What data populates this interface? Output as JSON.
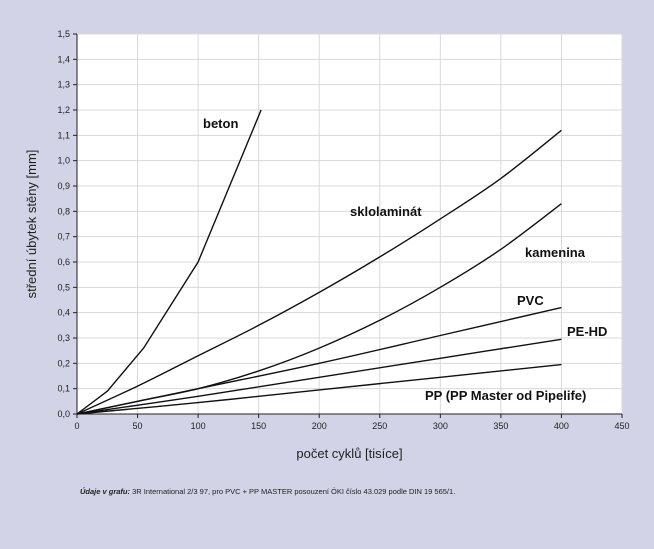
{
  "chart_data": {
    "type": "line",
    "title": "",
    "xlabel": "počet cyklů [tisíce]",
    "ylabel": "střední úbytek stěny [mm]",
    "xlim": [
      0,
      450
    ],
    "ylim": [
      0,
      1.5
    ],
    "xticks": [
      0,
      50,
      100,
      150,
      200,
      250,
      300,
      350,
      400,
      450
    ],
    "yticks": [
      "0,0",
      "0,1",
      "0,2",
      "0,3",
      "0,4",
      "0,5",
      "0,6",
      "0,7",
      "0,8",
      "0,9",
      "1,0",
      "1,1",
      "1,2",
      "1,3",
      "1,4",
      "1,5"
    ],
    "grid": true,
    "series": [
      {
        "name": "beton",
        "x": [
          0,
          25,
          55,
          100,
          152
        ],
        "y": [
          0,
          0.09,
          0.26,
          0.6,
          1.2
        ]
      },
      {
        "name": "sklolaminát",
        "x": [
          0,
          50,
          100,
          150,
          200,
          250,
          300,
          350,
          400
        ],
        "y": [
          0,
          0.11,
          0.23,
          0.35,
          0.48,
          0.62,
          0.77,
          0.93,
          1.12
        ]
      },
      {
        "name": "kamenina",
        "x": [
          0,
          50,
          100,
          150,
          200,
          250,
          300,
          350,
          400
        ],
        "y": [
          0,
          0.05,
          0.1,
          0.17,
          0.26,
          0.37,
          0.5,
          0.65,
          0.83
        ]
      },
      {
        "name": "PVC",
        "x": [
          0,
          100,
          200,
          300,
          400
        ],
        "y": [
          0,
          0.1,
          0.2,
          0.31,
          0.42
        ]
      },
      {
        "name": "PE-HD",
        "x": [
          0,
          100,
          200,
          300,
          400
        ],
        "y": [
          0,
          0.07,
          0.145,
          0.22,
          0.295
        ]
      },
      {
        "name": "PP (PP Master od Pipelife)",
        "x": [
          0,
          100,
          200,
          300,
          400
        ],
        "y": [
          0,
          0.045,
          0.095,
          0.145,
          0.195
        ]
      }
    ]
  },
  "footnote": {
    "label": "Údaje v grafu:",
    "text": " 3R International 2/3 97, pro PVC + PP MASTER posouzení ÖKI číslo 43.029 podle DIN 19 565/1."
  }
}
